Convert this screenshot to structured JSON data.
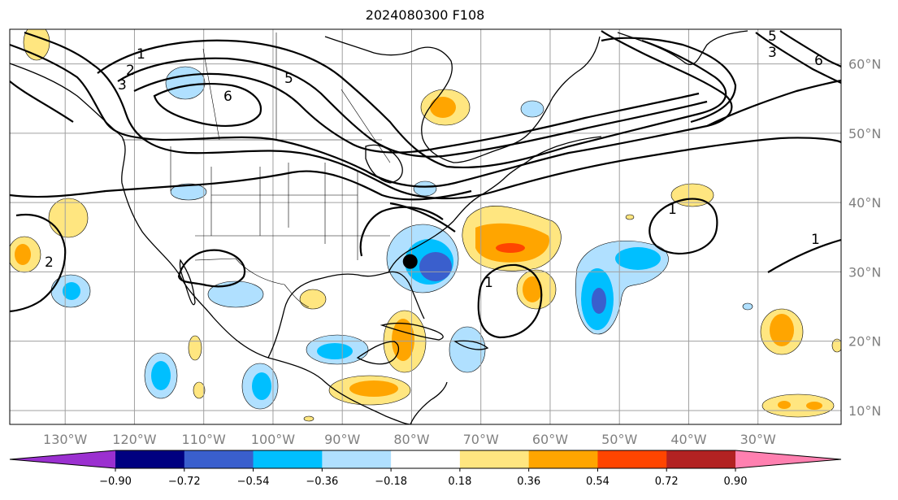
{
  "title": "2024080300 F108",
  "map": {
    "projection": "equirectangular",
    "lon_range": [
      -138,
      -18
    ],
    "lat_range": [
      8,
      65
    ],
    "gridlines": true,
    "lon_labels": [
      "130°W",
      "120°W",
      "110°W",
      "100°W",
      "90°W",
      "80°W",
      "70°W",
      "60°W",
      "50°W",
      "40°W",
      "30°W"
    ],
    "lat_labels": [
      "10°N",
      "20°N",
      "30°N",
      "40°N",
      "50°N",
      "60°N"
    ],
    "marker": {
      "name": "storm-center",
      "lon": -80.2,
      "lat": 31.5,
      "color": "#000000"
    }
  },
  "contour_labels": [
    "1",
    "2",
    "3",
    "5",
    "6"
  ],
  "colorbar": {
    "ticks": [
      "−0.90",
      "−0.72",
      "−0.54",
      "−0.36",
      "−0.18",
      "0.18",
      "0.36",
      "0.54",
      "0.72",
      "0.90"
    ],
    "colors": [
      "#9b30d0",
      "#000080",
      "#3a5fcd",
      "#00bfff",
      "#b0e0ff",
      "#ffffff",
      "#ffe680",
      "#ffa500",
      "#ff4500",
      "#b22222",
      "#ff80b0"
    ]
  }
}
